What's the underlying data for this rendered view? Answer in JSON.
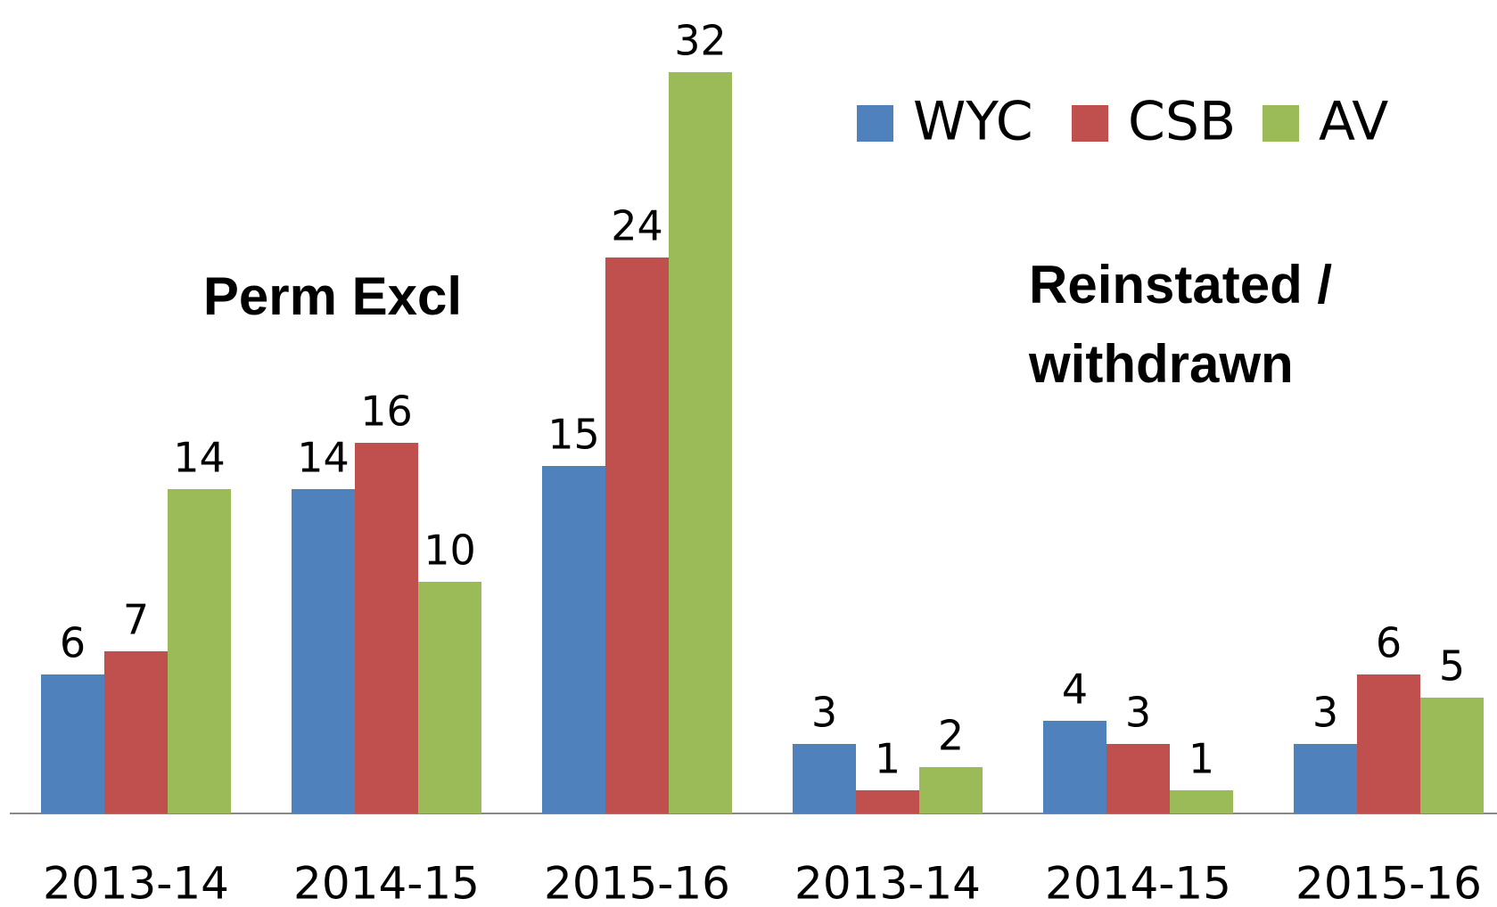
{
  "chart_data": {
    "type": "bar",
    "categories": [
      "2013-14",
      "2014-15",
      "2015-16",
      "2013-14",
      "2014-15",
      "2015-16"
    ],
    "series": [
      {
        "name": "WYC",
        "color": "#4f81bd",
        "values": [
          6,
          14,
          15,
          3,
          4,
          3
        ]
      },
      {
        "name": "CSB",
        "color": "#c0504d",
        "values": [
          7,
          16,
          24,
          1,
          3,
          6
        ]
      },
      {
        "name": "AV",
        "color": "#9bbb59",
        "values": [
          14,
          10,
          32,
          2,
          1,
          5
        ]
      }
    ],
    "annotations": [
      "Perm Excl",
      "Reinstated /",
      "withdrawn"
    ],
    "ylim": [
      0,
      35
    ],
    "legend": "top-right"
  }
}
